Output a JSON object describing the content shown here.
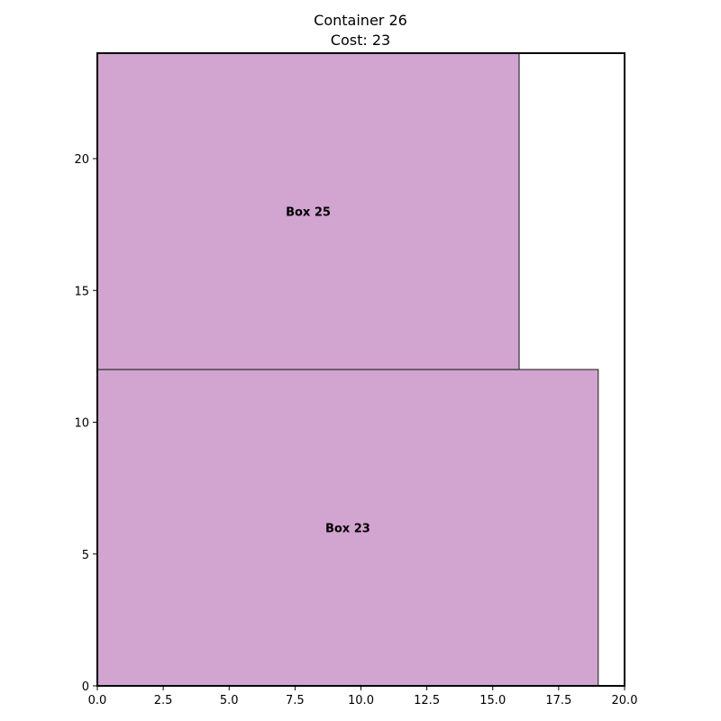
{
  "chart_data": {
    "type": "rectangles",
    "title": [
      "Container 26",
      "Cost: 23"
    ],
    "container": {
      "x": 0,
      "y": 0,
      "width": 20,
      "height": 24
    },
    "xlim": [
      0,
      20
    ],
    "ylim": [
      0,
      24
    ],
    "x_ticks": [
      0.0,
      2.5,
      5.0,
      7.5,
      10.0,
      12.5,
      15.0,
      17.5,
      20.0
    ],
    "x_tick_labels": [
      "0.0",
      "2.5",
      "5.0",
      "7.5",
      "10.0",
      "12.5",
      "15.0",
      "17.5",
      "20.0"
    ],
    "y_ticks": [
      0,
      5,
      10,
      15,
      20
    ],
    "y_tick_labels": [
      "0",
      "5",
      "10",
      "15",
      "20"
    ],
    "boxes": [
      {
        "label": "Box 23",
        "x": 0,
        "y": 0,
        "width": 19,
        "height": 12,
        "color": "#d2a4d0"
      },
      {
        "label": "Box 25",
        "x": 0,
        "y": 12,
        "width": 16,
        "height": 12,
        "color": "#d2a4d0"
      }
    ],
    "grid": false
  }
}
